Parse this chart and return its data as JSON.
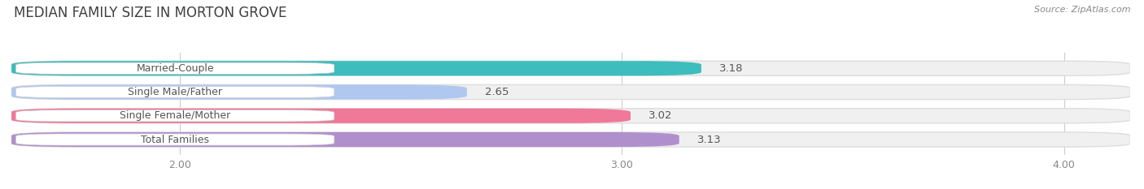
{
  "title": "MEDIAN FAMILY SIZE IN MORTON GROVE",
  "source": "Source: ZipAtlas.com",
  "categories": [
    "Married-Couple",
    "Single Male/Father",
    "Single Female/Mother",
    "Total Families"
  ],
  "values": [
    3.18,
    2.65,
    3.02,
    3.13
  ],
  "bar_colors": [
    "#3dbdbd",
    "#b0c8f0",
    "#f07898",
    "#b090cc"
  ],
  "bar_bg_color": "#f0f0f0",
  "bar_border_color": "#dddddd",
  "xlim": [
    1.62,
    4.15
  ],
  "xmin": 1.62,
  "xmax": 4.15,
  "xticks": [
    2.0,
    3.0,
    4.0
  ],
  "xtick_labels": [
    "2.00",
    "3.00",
    "4.00"
  ],
  "label_color": "#555555",
  "title_color": "#404040",
  "value_fontsize": 9.5,
  "label_fontsize": 9,
  "title_fontsize": 12,
  "background_color": "#ffffff"
}
